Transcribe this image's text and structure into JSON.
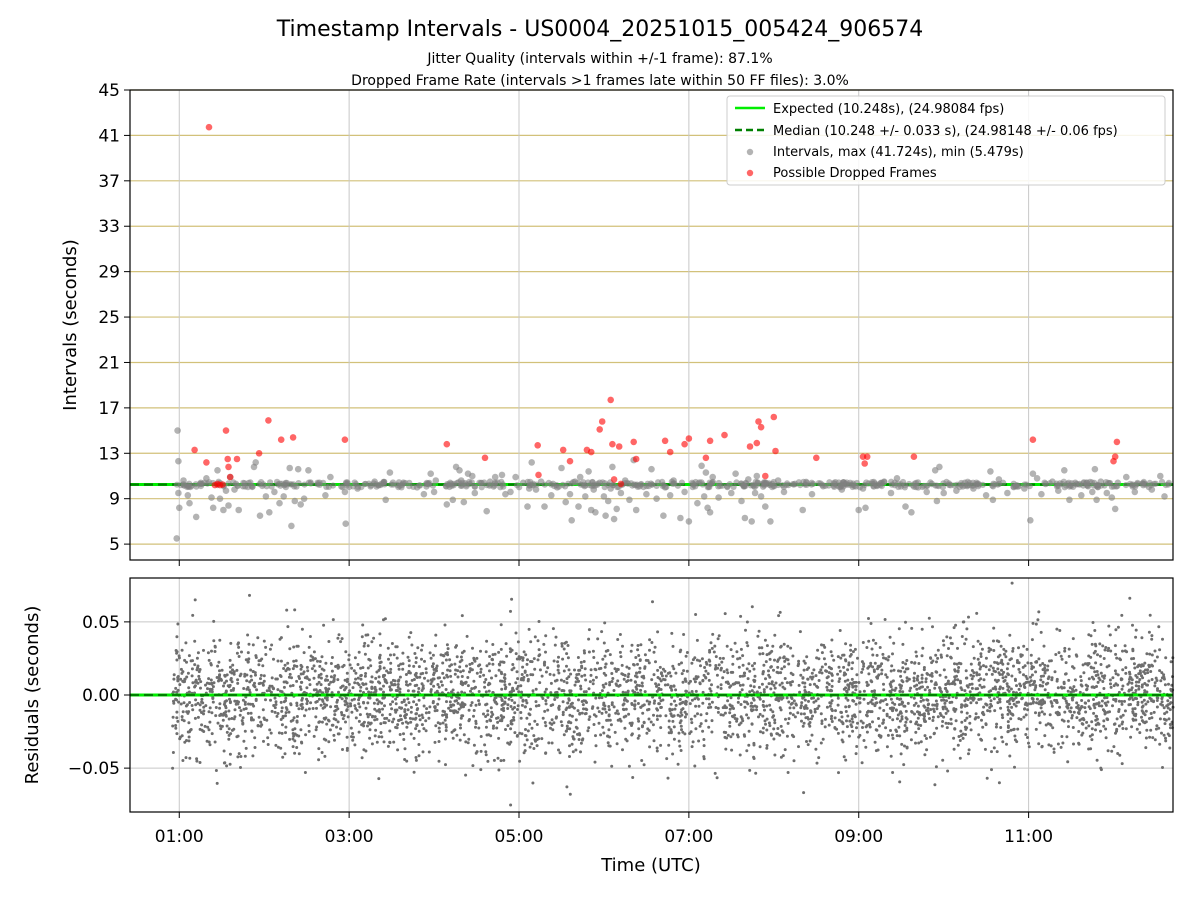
{
  "chart_data": {
    "type": "scatter",
    "title": "Timestamp Intervals - US0004_20251015_005424_906574",
    "subtitles": [
      "Jitter Quality (intervals within +/-1 frame): 87.1%",
      "Dropped Frame Rate (intervals >1 frames late within 50 FF files): 3.0%"
    ],
    "xlabel": "Time (UTC)",
    "x_unit": "hours UTC",
    "xlim": [
      0.42,
      12.7
    ],
    "x_ticks": [
      1,
      3,
      5,
      7,
      9,
      11
    ],
    "x_tick_labels": [
      "01:00",
      "03:00",
      "05:00",
      "07:00",
      "09:00",
      "11:00"
    ],
    "top_panel": {
      "ylabel": "Intervals (seconds)",
      "ylim": [
        3.6,
        45
      ],
      "y_ticks": [
        5,
        9,
        13,
        17,
        21,
        25,
        29,
        33,
        37,
        41,
        45
      ],
      "y_tick_labels": [
        "5",
        "9",
        "13",
        "17",
        "21",
        "25",
        "29",
        "33",
        "37",
        "41",
        "45"
      ],
      "grid_colors": {
        "vertical": "#c8c8c8",
        "horizontal": "#d2c17a"
      },
      "expected_value": 10.248,
      "median_value": 10.248,
      "series": [
        {
          "name": "Expected (10.248s), (24.98084 fps)",
          "kind": "line",
          "color": "#00ee00",
          "style": "solid"
        },
        {
          "name": "Median (10.248 +/- 0.033 s), (24.98148 +/- 0.06 fps)",
          "kind": "line",
          "color": "#008000",
          "style": "dashed"
        },
        {
          "name": "Intervals, max (41.724s), min (5.479s)",
          "kind": "scatter",
          "color": "#808080",
          "points": [
            [
              0.98,
              15
            ],
            [
              0.99,
              12.3
            ],
            [
              0.97,
              5.5
            ],
            [
              1.0,
              8.2
            ],
            [
              0.99,
              9.5
            ],
            [
              1.05,
              10.6
            ],
            [
              1.1,
              9.3
            ],
            [
              1.12,
              8.6
            ],
            [
              1.2,
              7.4
            ],
            [
              1.32,
              10.8
            ],
            [
              1.38,
              9.1
            ],
            [
              1.4,
              8.2
            ],
            [
              1.45,
              11.5
            ],
            [
              1.48,
              9.0
            ],
            [
              1.52,
              8.0
            ],
            [
              1.55,
              9.7
            ],
            [
              1.58,
              8.4
            ],
            [
              1.6,
              10.9
            ],
            [
              1.65,
              9.8
            ],
            [
              1.7,
              8.0
            ],
            [
              1.75,
              10.1
            ],
            [
              1.88,
              11.8
            ],
            [
              1.9,
              12.2
            ],
            [
              1.95,
              7.5
            ],
            [
              2.02,
              9.2
            ],
            [
              2.06,
              7.8
            ],
            [
              2.12,
              9.6
            ],
            [
              2.18,
              8.6
            ],
            [
              2.23,
              9.2
            ],
            [
              2.3,
              11.7
            ],
            [
              2.32,
              6.6
            ],
            [
              2.36,
              8.8
            ],
            [
              2.4,
              11.6
            ],
            [
              2.43,
              8.5
            ],
            [
              2.47,
              9.0
            ],
            [
              2.52,
              11.5
            ],
            [
              2.65,
              10.4
            ],
            [
              2.72,
              9.3
            ],
            [
              2.78,
              10.9
            ],
            [
              2.95,
              9.6
            ],
            [
              2.96,
              6.8
            ],
            [
              3.1,
              9.9
            ],
            [
              3.3,
              10.5
            ],
            [
              3.43,
              8.9
            ],
            [
              3.48,
              11.3
            ],
            [
              3.62,
              10.2
            ],
            [
              3.8,
              10.0
            ],
            [
              3.88,
              9.4
            ],
            [
              3.96,
              11.2
            ],
            [
              4.0,
              9.6
            ],
            [
              4.02,
              10.6
            ],
            [
              4.15,
              8.5
            ],
            [
              4.2,
              10.3
            ],
            [
              4.22,
              8.9
            ],
            [
              4.26,
              11.8
            ],
            [
              4.3,
              11.5
            ],
            [
              4.32,
              10.6
            ],
            [
              4.35,
              8.7
            ],
            [
              4.38,
              10.1
            ],
            [
              4.4,
              11.2
            ],
            [
              4.45,
              11.0
            ],
            [
              4.48,
              9.5
            ],
            [
              4.62,
              7.9
            ],
            [
              4.66,
              10.5
            ],
            [
              4.72,
              10.9
            ],
            [
              4.8,
              11.1
            ],
            [
              4.84,
              9.4
            ],
            [
              4.9,
              9.6
            ],
            [
              4.96,
              10.9
            ],
            [
              5.05,
              10.4
            ],
            [
              5.1,
              8.3
            ],
            [
              5.12,
              9.9
            ],
            [
              5.15,
              12.2
            ],
            [
              5.2,
              9.8
            ],
            [
              5.26,
              10.5
            ],
            [
              5.3,
              8.3
            ],
            [
              5.38,
              9.3
            ],
            [
              5.45,
              10.0
            ],
            [
              5.5,
              11.7
            ],
            [
              5.55,
              8.7
            ],
            [
              5.6,
              9.4
            ],
            [
              5.62,
              7.1
            ],
            [
              5.66,
              10.5
            ],
            [
              5.7,
              8.3
            ],
            [
              5.72,
              10.9
            ],
            [
              5.78,
              9.2
            ],
            [
              5.82,
              11.4
            ],
            [
              5.85,
              8.0
            ],
            [
              5.88,
              9.8
            ],
            [
              5.9,
              7.8
            ],
            [
              5.95,
              10.4
            ],
            [
              6.0,
              9.2
            ],
            [
              6.02,
              7.5
            ],
            [
              6.05,
              8.8
            ],
            [
              6.08,
              9.9
            ],
            [
              6.1,
              11.8
            ],
            [
              6.12,
              7.2
            ],
            [
              6.15,
              8.1
            ],
            [
              6.2,
              9.5
            ],
            [
              6.25,
              10.6
            ],
            [
              6.3,
              8.9
            ],
            [
              6.35,
              12.4
            ],
            [
              6.38,
              8.0
            ],
            [
              6.42,
              10.1
            ],
            [
              6.5,
              9.4
            ],
            [
              6.56,
              11.6
            ],
            [
              6.62,
              9.0
            ],
            [
              6.7,
              7.5
            ],
            [
              6.72,
              10.0
            ],
            [
              6.78,
              9.3
            ],
            [
              6.82,
              10.6
            ],
            [
              6.9,
              7.3
            ],
            [
              6.95,
              9.6
            ],
            [
              7.0,
              7.0
            ],
            [
              7.05,
              10.3
            ],
            [
              7.1,
              8.6
            ],
            [
              7.15,
              11.9
            ],
            [
              7.18,
              9.2
            ],
            [
              7.2,
              11.3
            ],
            [
              7.22,
              8.2
            ],
            [
              7.25,
              7.8
            ],
            [
              7.28,
              10.9
            ],
            [
              7.35,
              9.1
            ],
            [
              7.45,
              10.1
            ],
            [
              7.5,
              9.5
            ],
            [
              7.55,
              11.2
            ],
            [
              7.62,
              8.8
            ],
            [
              7.66,
              7.3
            ],
            [
              7.7,
              10.7
            ],
            [
              7.74,
              7.0
            ],
            [
              7.78,
              9.5
            ],
            [
              7.8,
              11.0
            ],
            [
              7.85,
              9.2
            ],
            [
              7.9,
              8.3
            ],
            [
              7.96,
              7.0
            ],
            [
              8.05,
              10.6
            ],
            [
              8.12,
              9.6
            ],
            [
              8.25,
              10.3
            ],
            [
              8.34,
              8.0
            ],
            [
              8.45,
              9.4
            ],
            [
              8.58,
              10.1
            ],
            [
              8.8,
              9.8
            ],
            [
              9.0,
              8.0
            ],
            [
              9.05,
              9.9
            ],
            [
              9.08,
              8.2
            ],
            [
              9.22,
              10.2
            ],
            [
              9.3,
              10.5
            ],
            [
              9.38,
              9.5
            ],
            [
              9.45,
              10.8
            ],
            [
              9.55,
              8.3
            ],
            [
              9.62,
              7.8
            ],
            [
              9.7,
              10.0
            ],
            [
              9.8,
              9.6
            ],
            [
              9.86,
              10.3
            ],
            [
              9.9,
              11.5
            ],
            [
              9.92,
              8.8
            ],
            [
              9.95,
              11.8
            ],
            [
              10.0,
              9.5
            ],
            [
              10.08,
              10.2
            ],
            [
              10.15,
              9.7
            ],
            [
              10.25,
              10.4
            ],
            [
              10.35,
              9.9
            ],
            [
              10.5,
              9.3
            ],
            [
              10.55,
              11.4
            ],
            [
              10.58,
              8.9
            ],
            [
              10.65,
              10.7
            ],
            [
              10.75,
              9.5
            ],
            [
              10.85,
              10.1
            ],
            [
              10.95,
              9.9
            ],
            [
              11.02,
              7.1
            ],
            [
              11.05,
              11.2
            ],
            [
              11.1,
              10.8
            ],
            [
              11.15,
              9.4
            ],
            [
              11.2,
              10.3
            ],
            [
              11.28,
              10.5
            ],
            [
              11.35,
              9.7
            ],
            [
              11.42,
              11.5
            ],
            [
              11.48,
              8.9
            ],
            [
              11.55,
              10.4
            ],
            [
              11.62,
              9.3
            ],
            [
              11.7,
              10.1
            ],
            [
              11.75,
              9.6
            ],
            [
              11.78,
              11.6
            ],
            [
              11.8,
              8.9
            ],
            [
              11.85,
              10.5
            ],
            [
              11.92,
              9.5
            ],
            [
              11.98,
              9.1
            ],
            [
              12.02,
              8.1
            ],
            [
              12.05,
              10.4
            ],
            [
              12.15,
              10.9
            ],
            [
              12.25,
              9.6
            ],
            [
              12.35,
              10.2
            ],
            [
              12.45,
              9.8
            ],
            [
              12.55,
              11.0
            ],
            [
              12.6,
              9.2
            ]
          ]
        },
        {
          "name": "Possible Dropped Frames",
          "kind": "scatter",
          "color": "#ff0000",
          "points": [
            [
              1.35,
              41.72
            ],
            [
              1.18,
              13.3
            ],
            [
              1.32,
              12.2
            ],
            [
              1.42,
              10.2
            ],
            [
              1.45,
              10.3
            ],
            [
              1.48,
              10.2
            ],
            [
              1.51,
              10.25
            ],
            [
              1.55,
              15
            ],
            [
              1.57,
              12.5
            ],
            [
              1.58,
              11.8
            ],
            [
              1.6,
              10.9
            ],
            [
              1.68,
              12.5
            ],
            [
              1.94,
              13
            ],
            [
              2.05,
              15.9
            ],
            [
              2.2,
              14.2
            ],
            [
              2.34,
              14.4
            ],
            [
              2.95,
              14.2
            ],
            [
              4.15,
              13.8
            ],
            [
              4.6,
              12.6
            ],
            [
              5.22,
              13.7
            ],
            [
              5.23,
              11.1
            ],
            [
              5.52,
              13.3
            ],
            [
              5.6,
              12.3
            ],
            [
              5.8,
              13.3
            ],
            [
              5.85,
              13.1
            ],
            [
              5.95,
              15.1
            ],
            [
              5.98,
              15.8
            ],
            [
              6.08,
              17.7
            ],
            [
              6.1,
              13.8
            ],
            [
              6.12,
              10.7
            ],
            [
              6.18,
              13.6
            ],
            [
              6.2,
              10.3
            ],
            [
              6.35,
              14.0
            ],
            [
              6.38,
              12.5
            ],
            [
              6.72,
              14.1
            ],
            [
              6.78,
              13.1
            ],
            [
              6.95,
              13.8
            ],
            [
              7.0,
              14.3
            ],
            [
              7.2,
              12.6
            ],
            [
              7.25,
              14.1
            ],
            [
              7.42,
              14.6
            ],
            [
              7.72,
              13.6
            ],
            [
              7.8,
              13.9
            ],
            [
              7.82,
              15.8
            ],
            [
              7.85,
              15.3
            ],
            [
              7.9,
              11.0
            ],
            [
              8.0,
              16.2
            ],
            [
              8.02,
              13.2
            ],
            [
              8.5,
              12.6
            ],
            [
              9.05,
              12.7
            ],
            [
              9.07,
              12.1
            ],
            [
              9.1,
              12.7
            ],
            [
              9.65,
              12.7
            ],
            [
              11.05,
              14.2
            ],
            [
              12.0,
              12.3
            ],
            [
              12.02,
              12.7
            ],
            [
              12.04,
              14.0
            ]
          ]
        }
      ]
    },
    "bottom_panel": {
      "ylabel": "Residuals (seconds)",
      "ylim": [
        -0.08,
        0.08
      ],
      "y_ticks": [
        0.05,
        0.0,
        -0.05
      ],
      "y_tick_labels": [
        "0.05",
        "0.00",
        "−0.05"
      ],
      "series": [
        {
          "name": "Residuals",
          "kind": "scatter",
          "color": "#6e6e6e",
          "n_points": 4200,
          "x_range": [
            0.92,
            12.7
          ],
          "mean": 0.0,
          "std": 0.02
        },
        {
          "name": "Expected",
          "kind": "line",
          "color": "#00ee00",
          "value": 0.0
        },
        {
          "name": "Median",
          "kind": "line",
          "color": "#008000",
          "style": "dashed",
          "value": 0.0
        }
      ]
    }
  }
}
